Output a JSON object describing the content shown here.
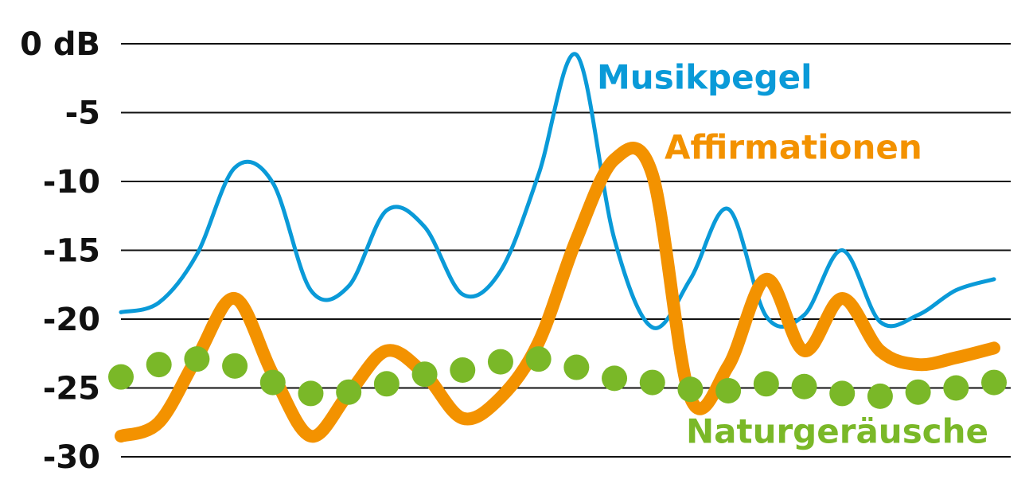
{
  "chart_data": {
    "type": "line",
    "categories": [
      null,
      null,
      null,
      null,
      null,
      null,
      null,
      null,
      null,
      null,
      null,
      null,
      null,
      null,
      null,
      null,
      null,
      null,
      null,
      null,
      null,
      null,
      null,
      null
    ],
    "ylim": [
      -30,
      0
    ],
    "yticks": [
      {
        "value": 0,
        "label": "0 dB"
      },
      -5,
      -10,
      -15,
      -20,
      -25,
      -30
    ],
    "grid": true,
    "series": [
      {
        "name": "Musikpegel",
        "color": "#0a9ad8",
        "style": "line",
        "values": [
          -19.5,
          -18.8,
          -15.3,
          -9.0,
          -10.1,
          -17.9,
          -17.6,
          -12.1,
          -13.3,
          -18.2,
          -16.5,
          -9.5,
          -0.8,
          -14.2,
          -20.6,
          -17.1,
          -12.0,
          -19.8,
          -19.7,
          -15.0,
          -20.2,
          -19.7,
          -17.9,
          -17.1
        ]
      },
      {
        "name": "Affirmationen",
        "color": "#f39200",
        "style": "thick-line",
        "values": [
          -28.5,
          -27.5,
          -22.8,
          -18.5,
          -24.0,
          -28.5,
          -25.4,
          -22.3,
          -24.0,
          -27.2,
          -25.7,
          -21.7,
          -14.2,
          -8.4,
          -9.5,
          -25.7,
          -23.4,
          -17.1,
          -22.3,
          -18.5,
          -22.3,
          -23.3,
          -22.8,
          -22.1
        ]
      },
      {
        "name": "Naturgeräusche",
        "color": "#7ab828",
        "style": "dots",
        "values": [
          -24.2,
          -23.3,
          -22.9,
          -23.4,
          -24.6,
          -25.4,
          -25.3,
          -24.7,
          -24.0,
          -23.7,
          -23.1,
          -22.9,
          -23.5,
          -24.3,
          -24.6,
          -25.1,
          -25.2,
          -24.7,
          -24.9,
          -25.4,
          -25.6,
          -25.3,
          -25.0,
          -24.6
        ]
      }
    ]
  }
}
